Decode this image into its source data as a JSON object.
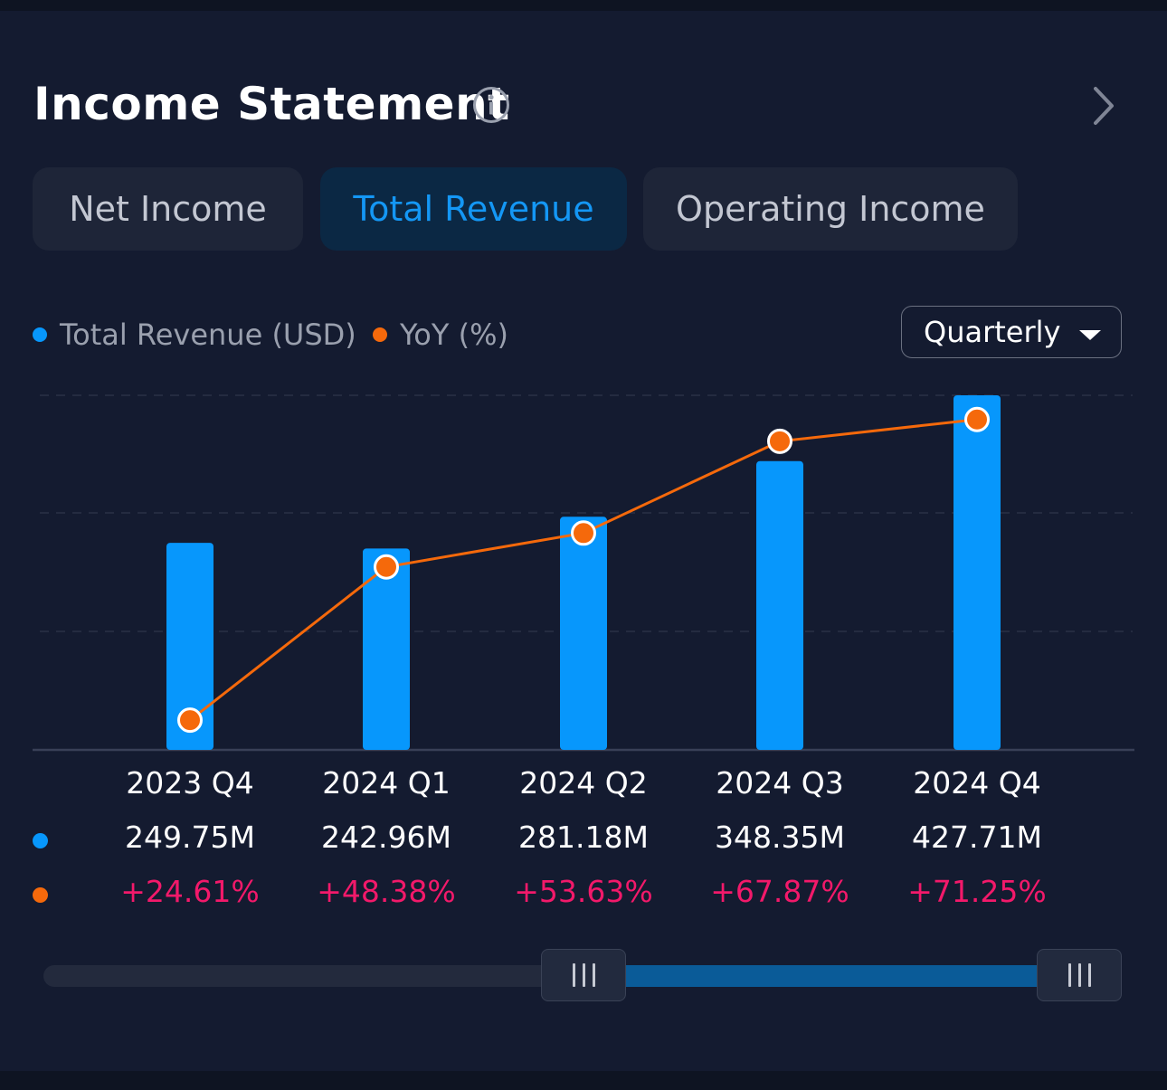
{
  "header": {
    "title": "Income Statement"
  },
  "tabs": [
    {
      "label": "Net Income",
      "active": false
    },
    {
      "label": "Total Revenue",
      "active": true
    },
    {
      "label": "Operating Income",
      "active": false
    }
  ],
  "legend": {
    "revenue_label": "Total Revenue (USD)",
    "yoy_label": "YoY (%)"
  },
  "period_select": {
    "value": "Quarterly"
  },
  "colors": {
    "revenue": "#0797fc",
    "yoy": "#f5690b",
    "positive": "#f2196a",
    "active_tab": "#1497f5"
  },
  "chart_data": {
    "type": "bar",
    "categories": [
      "2023 Q4",
      "2024 Q1",
      "2024 Q2",
      "2024 Q3",
      "2024 Q4"
    ],
    "series": [
      {
        "name": "Total Revenue (USD)",
        "type": "bar",
        "values": [
          249.75,
          242.96,
          281.18,
          348.35,
          427.71
        ],
        "unit": "M",
        "labels": [
          "249.75M",
          "242.96M",
          "281.18M",
          "348.35M",
          "427.71M"
        ]
      },
      {
        "name": "YoY (%)",
        "type": "line",
        "values": [
          24.61,
          48.38,
          53.63,
          67.87,
          71.25
        ],
        "labels": [
          "+24.61%",
          "+48.38%",
          "+53.63%",
          "+67.87%",
          "+71.25%"
        ]
      }
    ],
    "ylim_revenue": [
      0,
      427.71
    ],
    "ylim_yoy": [
      20,
      75
    ],
    "grid": true
  },
  "range_slider": {
    "start": 0.5,
    "end": 1.0
  }
}
